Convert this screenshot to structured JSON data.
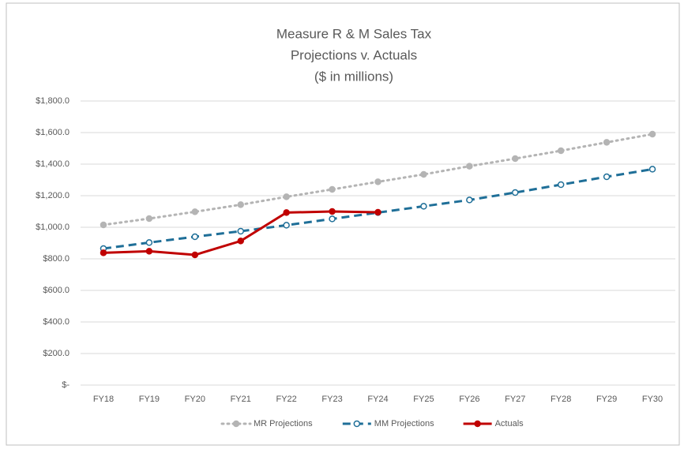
{
  "chart_data": {
    "type": "line",
    "title": [
      "Measure R & M Sales Tax",
      "Projections v. Actuals",
      "($ in millions)"
    ],
    "categories": [
      "FY18",
      "FY19",
      "FY20",
      "FY21",
      "FY22",
      "FY23",
      "FY24",
      "FY25",
      "FY26",
      "FY27",
      "FY28",
      "FY29",
      "FY30"
    ],
    "series": [
      {
        "name": "MR Projections",
        "color": "#b4b4b4",
        "style": "dotted",
        "marker": "filled",
        "values": [
          1015,
          1055,
          1098,
          1143,
          1193,
          1240,
          1288,
          1335,
          1387,
          1435,
          1485,
          1538,
          1590
        ]
      },
      {
        "name": "MM Projections",
        "color": "#1f6f98",
        "style": "dashed",
        "marker": "hollow",
        "values": [
          865,
          903,
          940,
          975,
          1013,
          1053,
          1093,
          1133,
          1173,
          1220,
          1270,
          1320,
          1368
        ]
      },
      {
        "name": "Actuals",
        "color": "#c00000",
        "style": "solid",
        "marker": "filled",
        "values": [
          838,
          848,
          825,
          913,
          1093,
          1100,
          1095,
          null,
          null,
          null,
          null,
          null,
          null
        ]
      }
    ],
    "ylim": [
      0,
      1800
    ],
    "yticks": [
      {
        "value": 0,
        "label": "$-"
      },
      {
        "value": 200,
        "label": "$200.0"
      },
      {
        "value": 400,
        "label": "$400.0"
      },
      {
        "value": 600,
        "label": "$600.0"
      },
      {
        "value": 800,
        "label": "$800.0"
      },
      {
        "value": 1000,
        "label": "$1,000.0"
      },
      {
        "value": 1200,
        "label": "$1,200.0"
      },
      {
        "value": 1400,
        "label": "$1,400.0"
      },
      {
        "value": 1600,
        "label": "$1,600.0"
      },
      {
        "value": 1800,
        "label": "$1,800.0"
      }
    ],
    "grid": true,
    "legend": "bottom"
  }
}
